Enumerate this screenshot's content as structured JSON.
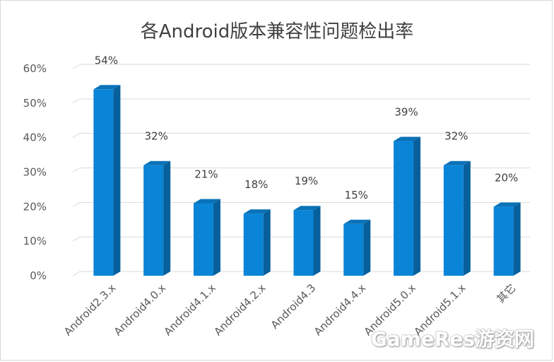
{
  "chart_data": {
    "type": "bar",
    "title": "各Android版本兼容性问题检出率",
    "categories": [
      "Android2.3.x",
      "Android4.0.x",
      "Android4.1.x",
      "Android4.2.x",
      "Android4.3",
      "Android4.4.x",
      "Android5.0.x",
      "Android5.1.x",
      "其它"
    ],
    "values": [
      54,
      32,
      21,
      18,
      19,
      15,
      39,
      32,
      20
    ],
    "data_labels": [
      "54%",
      "32%",
      "21%",
      "18%",
      "19%",
      "15%",
      "39%",
      "32%",
      "20%"
    ],
    "yticks": [
      "0%",
      "10%",
      "20%",
      "30%",
      "40%",
      "50%",
      "60%"
    ],
    "ylim": [
      0,
      60
    ],
    "grid": true,
    "legend": "none",
    "bar_color": "#0a84d6",
    "bar_side_color": "#07609c",
    "bar_top_color": "#0a72b8",
    "grid_color": "#d9d9d9"
  },
  "watermark": "GameRes游资网"
}
